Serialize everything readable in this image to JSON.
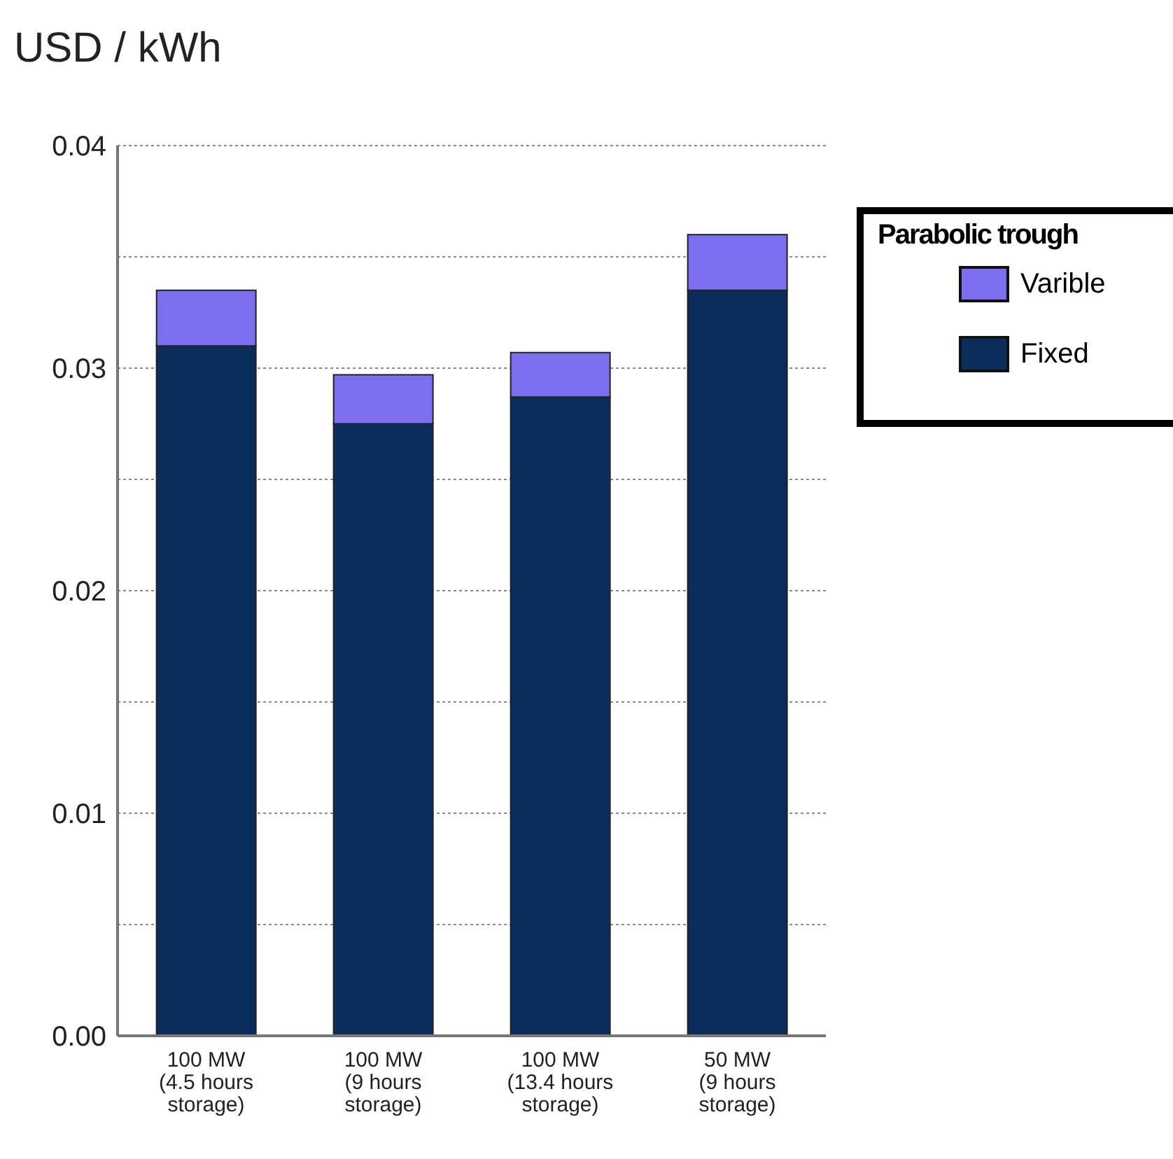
{
  "chart_data": {
    "type": "bar",
    "ylabel": "USD / kWh",
    "legend_title": "Parabolic trough",
    "categories": [
      "100 MW\n(4.5 hours\nstorage)",
      "100 MW\n(9 hours\nstorage)",
      "100 MW\n(13.4 hours\nstorage)",
      "50 MW\n(9 hours\nstorage)"
    ],
    "stacked": true,
    "series": [
      {
        "name": "Fixed",
        "color": "#0b2d5b",
        "values": [
          0.031,
          0.0275,
          0.0287,
          0.0335
        ]
      },
      {
        "name": "Varible",
        "color": "#7b6ff0",
        "values": [
          0.0025,
          0.0022,
          0.002,
          0.0025
        ]
      }
    ],
    "ylim": [
      0,
      0.04
    ],
    "yticks": [
      {
        "value": 0,
        "label": "0.00"
      },
      {
        "value": 0.005,
        "label": null
      },
      {
        "value": 0.01,
        "label": "0.01"
      },
      {
        "value": 0.015,
        "label": null
      },
      {
        "value": 0.02,
        "label": "0.02"
      },
      {
        "value": 0.025,
        "label": null
      },
      {
        "value": 0.03,
        "label": "0.03"
      },
      {
        "value": 0.035,
        "label": null
      },
      {
        "value": 0.04,
        "label": "0.04"
      }
    ],
    "grid": "y",
    "legend": "top right"
  }
}
